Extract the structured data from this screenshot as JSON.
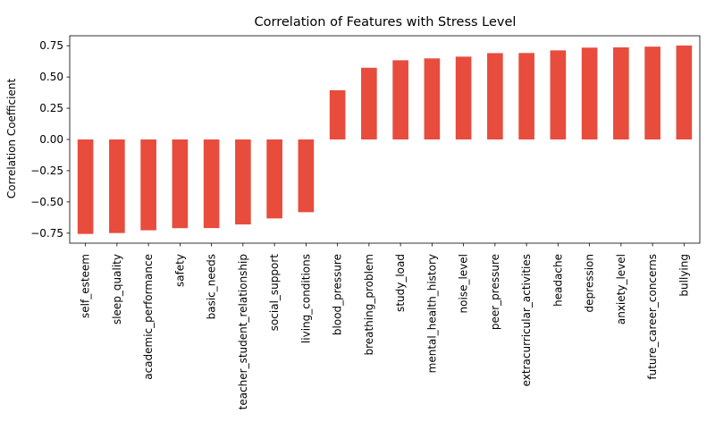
{
  "chart_data": {
    "type": "bar",
    "title": "Correlation of Features with Stress Level",
    "xlabel": "",
    "ylabel": "Correlation Coefficient",
    "bar_color": "#e84c3d",
    "ylim": [
      -0.83,
      0.83
    ],
    "yticks": [
      -0.75,
      -0.5,
      -0.25,
      0.0,
      0.25,
      0.5,
      0.75
    ],
    "ytick_labels": [
      "−0.75",
      "−0.50",
      "−0.25",
      "0.00",
      "0.25",
      "0.50",
      "0.75"
    ],
    "grid": false,
    "categories": [
      "self_esteem",
      "sleep_quality",
      "academic_performance",
      "safety",
      "basic_needs",
      "teacher_student_relationship",
      "social_support",
      "living_conditions",
      "blood_pressure",
      "breathing_problem",
      "study_load",
      "mental_health_history",
      "noise_level",
      "peer_pressure",
      "extracurricular_activities",
      "headache",
      "depression",
      "anxiety_level",
      "future_career_concerns",
      "bullying"
    ],
    "values": [
      -0.756,
      -0.749,
      -0.727,
      -0.71,
      -0.709,
      -0.68,
      -0.632,
      -0.582,
      0.394,
      0.574,
      0.634,
      0.649,
      0.663,
      0.691,
      0.692,
      0.713,
      0.735,
      0.737,
      0.743,
      0.752
    ]
  }
}
